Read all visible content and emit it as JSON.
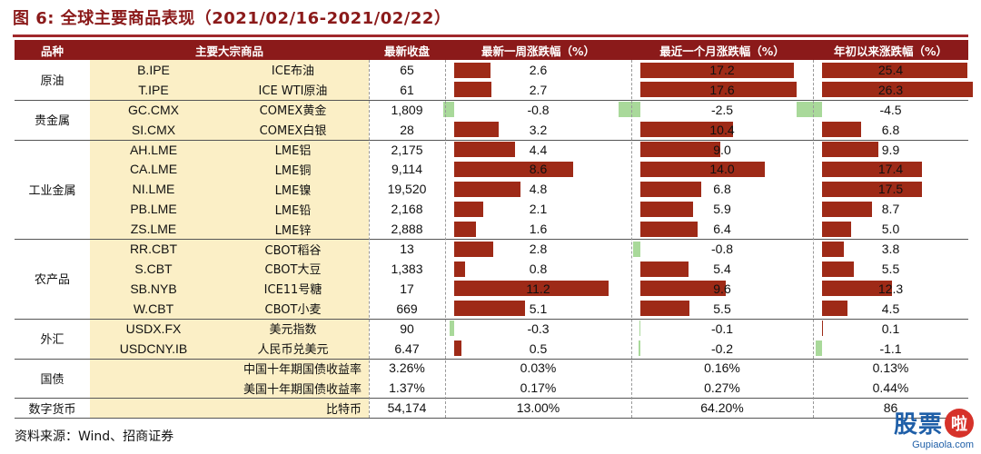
{
  "title": "图 6:  全球主要商品表现（2021/02/16-2021/02/22）",
  "source": "资料来源：Wind、招商证券",
  "watermark": {
    "chars": "股票",
    "circle": "啦",
    "url": "Gupiaola.com"
  },
  "headers": {
    "category": "品种",
    "commodity": "主要大宗商品",
    "close": "最新收盘",
    "week": "最新一周涨跌幅（%）",
    "month": "最近一个月涨跌幅（%）",
    "ytd": "年初以来涨跌幅（%）"
  },
  "colors": {
    "header_bg": "#8b1a1a",
    "bar_positive": "#9e2a17",
    "bar_negative": "#a9d99a",
    "highlight_bg": "#fbefc6"
  },
  "groups": [
    {
      "name": "原油",
      "rows": [
        {
          "code": "B.IPE",
          "name": "ICE布油",
          "close": "65",
          "week": "2.6",
          "month": "17.2",
          "ytd": "25.4"
        },
        {
          "code": "T.IPE",
          "name": "ICE WTI原油",
          "close": "61",
          "week": "2.7",
          "month": "17.6",
          "ytd": "26.3"
        }
      ]
    },
    {
      "name": "贵金属",
      "rows": [
        {
          "code": "GC.CMX",
          "name": "COMEX黄金",
          "close": "1,809",
          "week": "-0.8",
          "month": "-2.5",
          "ytd": "-4.5"
        },
        {
          "code": "SI.CMX",
          "name": "COMEX白银",
          "close": "28",
          "week": "3.2",
          "month": "10.4",
          "ytd": "6.8"
        }
      ]
    },
    {
      "name": "工业金属",
      "rows": [
        {
          "code": "AH.LME",
          "name": "LME铝",
          "close": "2,175",
          "week": "4.4",
          "month": "9.0",
          "ytd": "9.9"
        },
        {
          "code": "CA.LME",
          "name": "LME铜",
          "close": "9,114",
          "week": "8.6",
          "month": "14.0",
          "ytd": "17.4"
        },
        {
          "code": "NI.LME",
          "name": "LME镍",
          "close": "19,520",
          "week": "4.8",
          "month": "6.8",
          "ytd": "17.5"
        },
        {
          "code": "PB.LME",
          "name": "LME铅",
          "close": "2,168",
          "week": "2.1",
          "month": "5.9",
          "ytd": "8.7"
        },
        {
          "code": "ZS.LME",
          "name": "LME锌",
          "close": "2,888",
          "week": "1.6",
          "month": "6.4",
          "ytd": "5.0"
        }
      ]
    },
    {
      "name": "农产品",
      "rows": [
        {
          "code": "RR.CBT",
          "name": "CBOT稻谷",
          "close": "13",
          "week": "2.8",
          "month": "-0.8",
          "ytd": "3.8"
        },
        {
          "code": "S.CBT",
          "name": "CBOT大豆",
          "close": "1,383",
          "week": "0.8",
          "month": "5.4",
          "ytd": "5.5"
        },
        {
          "code": "SB.NYB",
          "name": "ICE11号糖",
          "close": "17",
          "week": "11.2",
          "month": "9.6",
          "ytd": "12.3"
        },
        {
          "code": "W.CBT",
          "name": "CBOT小麦",
          "close": "669",
          "week": "5.1",
          "month": "5.5",
          "ytd": "4.5"
        }
      ]
    },
    {
      "name": "外汇",
      "rows": [
        {
          "code": "USDX.FX",
          "name": "美元指数",
          "close": "90",
          "week": "-0.3",
          "month": "-0.1",
          "ytd": "0.1"
        },
        {
          "code": "USDCNY.IB",
          "name": "人民币兑美元",
          "close": "6.47",
          "week": "0.5",
          "month": "-0.2",
          "ytd": "-1.1"
        }
      ]
    },
    {
      "name": "国债",
      "rows": [
        {
          "code": "",
          "name": "中国十年期国债收益率",
          "close": "3.26%",
          "week": "0.03%",
          "month": "0.16%",
          "ytd": "0.13%",
          "nobar": true
        },
        {
          "code": "",
          "name": "美国十年期国债收益率",
          "close": "1.37%",
          "week": "0.17%",
          "month": "0.27%",
          "ytd": "0.44%",
          "nobar": true
        }
      ]
    },
    {
      "name": "数字货币",
      "rows": [
        {
          "code": "",
          "name": "比特币",
          "close": "54,174",
          "week": "13.00%",
          "month": "64.20%",
          "ytd": "86",
          "nobar": true
        }
      ]
    }
  ]
}
